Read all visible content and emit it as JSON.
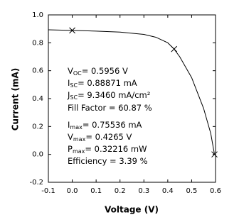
{
  "chart_data": {
    "type": "line",
    "xlabel": "Voltage (V)",
    "ylabel": "Current (mA)",
    "xlim": [
      -0.1,
      0.6
    ],
    "ylim": [
      -0.2,
      1.0
    ],
    "xticks": [
      -0.1,
      {
        "value": 0,
        "label": "0.0"
      },
      0.1,
      0.2,
      0.3,
      0.4,
      0.5,
      0.6
    ],
    "yticks": [
      -0.2,
      {
        "value": 0,
        "label": "0.0"
      },
      0.2,
      0.4,
      0.6,
      0.8,
      {
        "value": 1,
        "label": "1.0"
      }
    ],
    "grid": false,
    "series": [
      {
        "color": "#000000",
        "marker": "none",
        "x": [
          -0.1,
          0,
          0.1,
          0.2,
          0.3,
          0.35,
          0.4,
          0.4265,
          0.45,
          0.5,
          0.55,
          0.58,
          0.5956
        ],
        "values": [
          0.893,
          0.889,
          0.884,
          0.877,
          0.86,
          0.84,
          0.8,
          0.755,
          0.7,
          0.55,
          0.33,
          0.15,
          0
        ]
      },
      {
        "color": "#000000",
        "marker": "x",
        "x": [
          0,
          0.4265,
          0.5956
        ],
        "values": [
          0.88871,
          0.75536,
          0
        ]
      }
    ],
    "annotations": [
      {
        "main": "V",
        "sub": "OC",
        "rest": "= 0.5956 V"
      },
      {
        "main": "I",
        "sub": "SC",
        "rest": "= 0.88871 mA"
      },
      {
        "main": "J",
        "sub": "SC",
        "rest": "= 9.3460 mA/cm²"
      },
      {
        "main": "Fill Factor = 60.87 %"
      },
      {
        "main": "I",
        "sub": "max",
        "rest": "= 0.75536 mA"
      },
      {
        "main": "V",
        "sub": "max",
        "rest": "= 0.4265 V"
      },
      {
        "main": "P",
        "sub": "max",
        "rest": "= 0.32216 mW"
      },
      {
        "main": "Efficiency = 3.39 %"
      }
    ]
  }
}
